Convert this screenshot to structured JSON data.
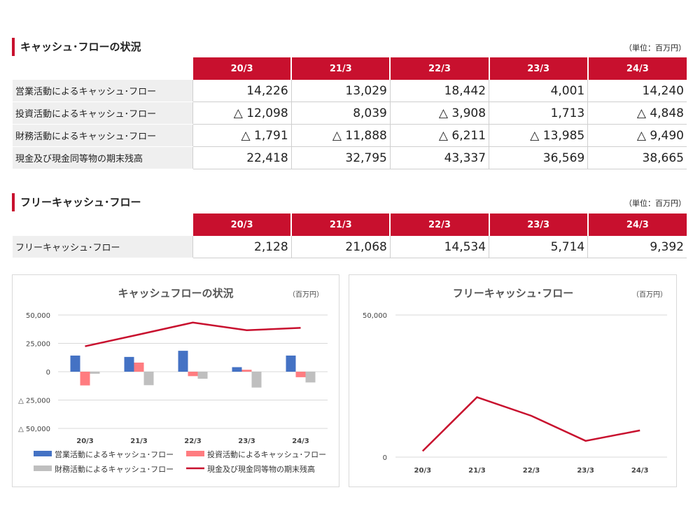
{
  "section1": {
    "title": "キャッシュ･フローの状況",
    "unit": "（単位：百万円）"
  },
  "section2": {
    "title": "フリーキャッシュ･フロー",
    "unit": "（単位：百万円）"
  },
  "years": [
    "20/3",
    "21/3",
    "22/3",
    "23/3",
    "24/3"
  ],
  "cf_table": {
    "rows": [
      {
        "label": "営業活動によるキャッシュ･フロー",
        "values": [
          "14,226",
          "13,029",
          "18,442",
          "4,001",
          "14,240"
        ]
      },
      {
        "label": "投資活動によるキャッシュ･フロー",
        "values": [
          "△ 12,098",
          "8,039",
          "△ 3,908",
          "1,713",
          "△ 4,848"
        ]
      },
      {
        "label": "財務活動によるキャッシュ･フロー",
        "values": [
          "△ 1,791",
          "△ 11,888",
          "△ 6,211",
          "△ 13,985",
          "△ 9,490"
        ]
      },
      {
        "label": "現金及び現金同等物の期末残高",
        "values": [
          "22,418",
          "32,795",
          "43,337",
          "36,569",
          "38,665"
        ]
      }
    ]
  },
  "fcf_table": {
    "rows": [
      {
        "label": "フリーキャッシュ･フロー",
        "values": [
          "2,128",
          "21,068",
          "14,534",
          "5,714",
          "9,392"
        ]
      }
    ]
  },
  "colors": {
    "accent": "#c8102e",
    "operating": "#4472c4",
    "investing": "#ff7c80",
    "financing": "#bfbfbf",
    "cash": "#c8102e"
  },
  "chart_data": [
    {
      "type": "bar",
      "title": "キャッシュフローの状況",
      "unit": "（百万円）",
      "categories": [
        "20/3",
        "21/3",
        "22/3",
        "23/3",
        "24/3"
      ],
      "ylim": [
        -50000,
        50000
      ],
      "yticks": [
        50000,
        25000,
        0,
        -25000,
        -50000
      ],
      "ytick_labels": [
        "50,000",
        "25,000",
        "0",
        "△ 25,000",
        "△ 50,000"
      ],
      "grid": true,
      "legend_position": "bottom",
      "series": [
        {
          "name": "営業活動によるキャッシュ･フロー",
          "type": "bar",
          "values": [
            14226,
            13029,
            18442,
            4001,
            14240
          ]
        },
        {
          "name": "投資活動によるキャッシュ･フロー",
          "type": "bar",
          "values": [
            -12098,
            8039,
            -3908,
            1713,
            -4848
          ]
        },
        {
          "name": "財務活動によるキャッシュ･フロー",
          "type": "bar",
          "values": [
            -1791,
            -11888,
            -6211,
            -13985,
            -9490
          ]
        },
        {
          "name": "現金及び現金同等物の期末残高",
          "type": "line",
          "values": [
            22418,
            32795,
            43337,
            36569,
            38665
          ]
        }
      ]
    },
    {
      "type": "line",
      "title": "フリーキャッシュ･フロー",
      "unit": "（百万円）",
      "categories": [
        "20/3",
        "21/3",
        "22/3",
        "23/3",
        "24/3"
      ],
      "ylim": [
        0,
        50000
      ],
      "yticks": [
        50000,
        0
      ],
      "ytick_labels": [
        "50,000",
        "0"
      ],
      "grid": true,
      "series": [
        {
          "name": "フリーキャッシュ･フロー",
          "values": [
            2128,
            21068,
            14534,
            5714,
            9392
          ]
        }
      ]
    }
  ]
}
